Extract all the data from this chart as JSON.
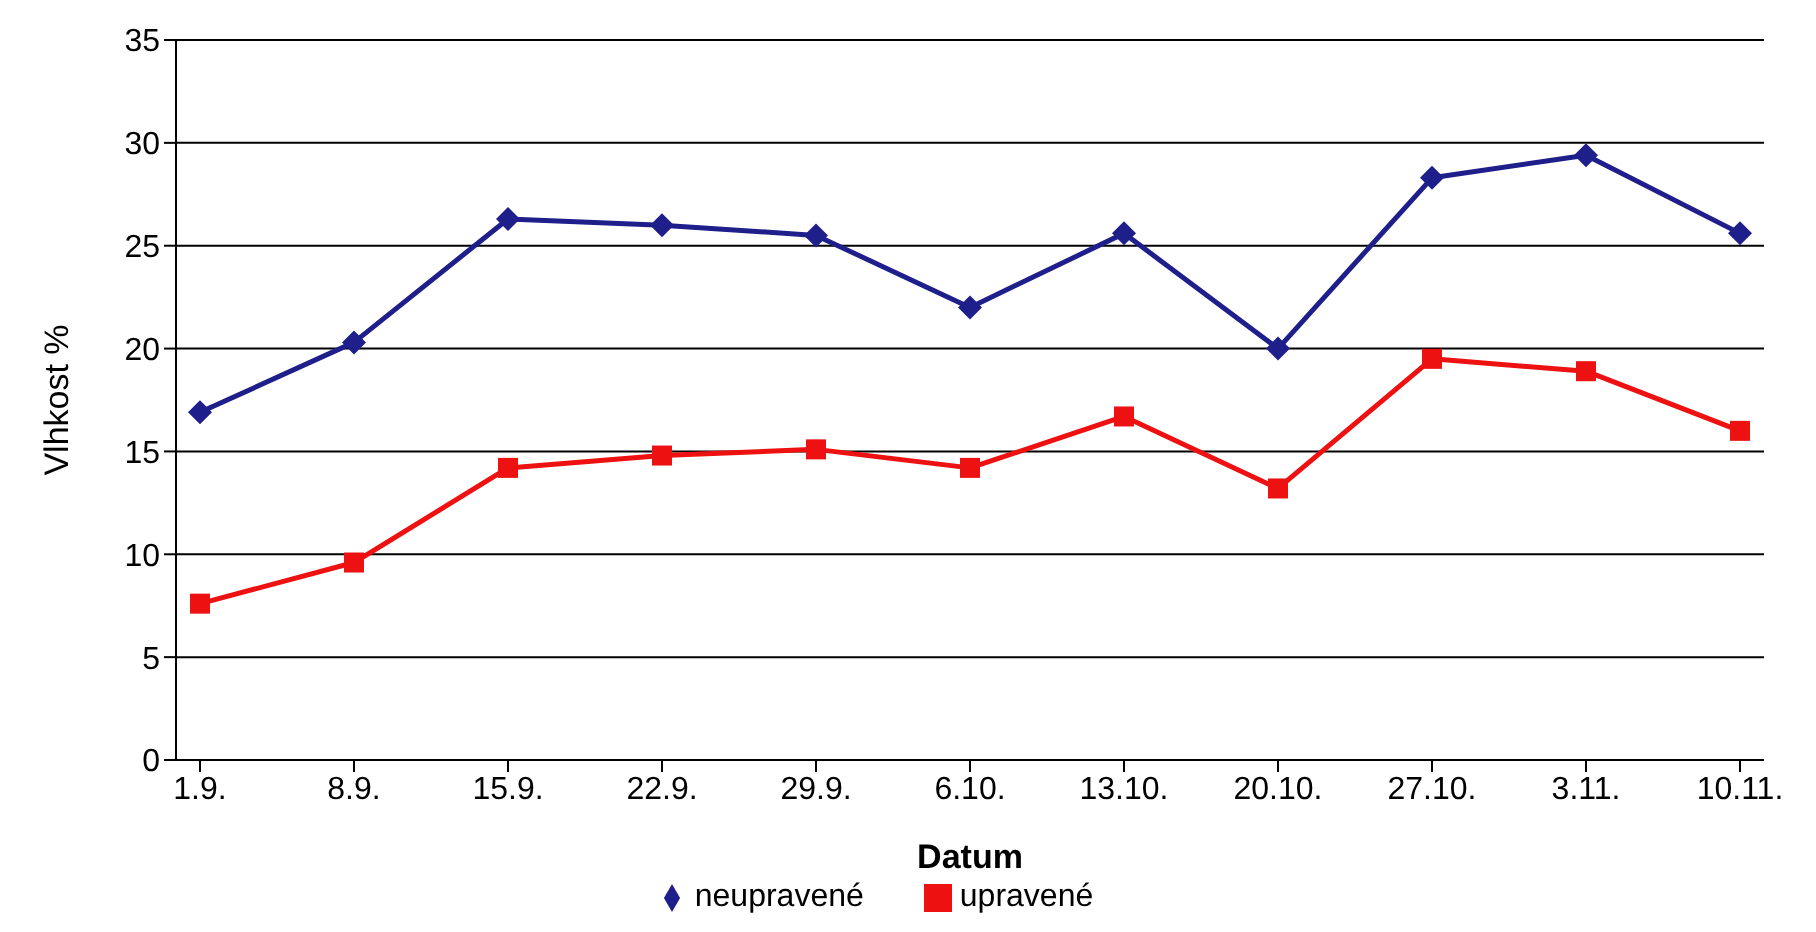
{
  "chart_data": {
    "type": "line",
    "xlabel": "Datum",
    "ylabel": "Vlhkost %",
    "categories": [
      "1.9.",
      "8.9.",
      "15.9.",
      "22.9.",
      "29.9.",
      "6.10.",
      "13.10.",
      "20.10.",
      "27.10.",
      "3.11.",
      "10.11."
    ],
    "series": [
      {
        "name": "neupravené",
        "color": "#1f1f8c",
        "marker": "diamond",
        "values": [
          16.9,
          20.3,
          26.3,
          26,
          25.5,
          22,
          25.6,
          20,
          28.3,
          29.4,
          25.6
        ]
      },
      {
        "name": "upravené",
        "color": "#ee1111",
        "marker": "square",
        "values": [
          7.6,
          9.6,
          14.2,
          14.8,
          15.1,
          14.2,
          16.7,
          13.2,
          19.5,
          18.9,
          16
        ]
      }
    ],
    "ylim": [
      0,
      35
    ],
    "yticks": [
      0,
      5,
      10,
      15,
      20,
      25,
      30,
      35
    ],
    "grid": "y",
    "legend": "bottom"
  }
}
